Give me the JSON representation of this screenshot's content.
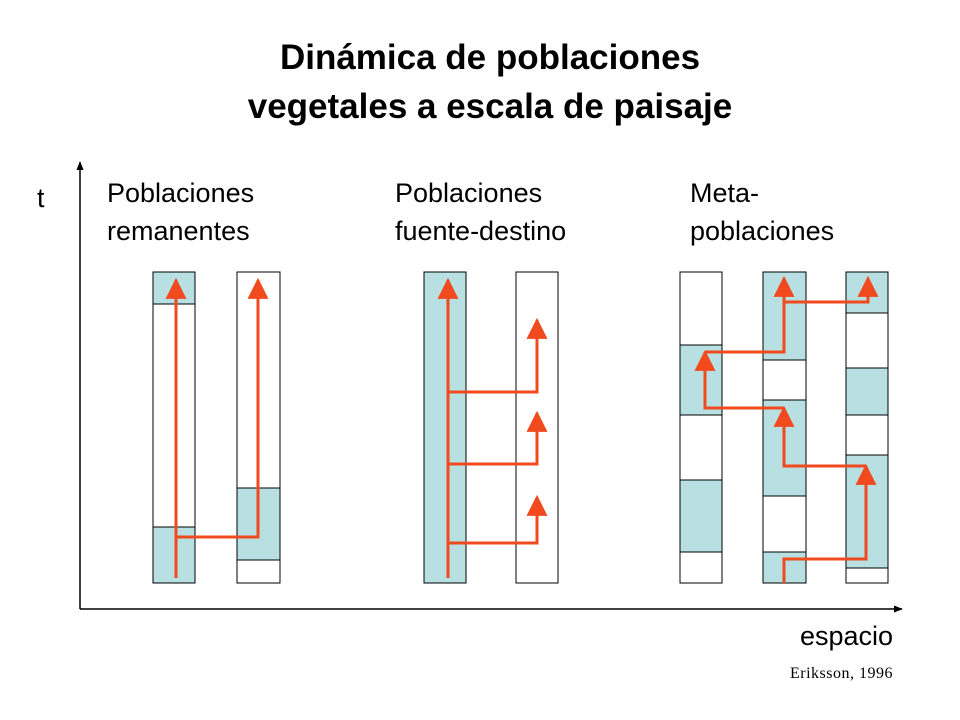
{
  "title": {
    "line1": "Dinámica de poblaciones",
    "line2": "vegetales a escala de paisaje"
  },
  "axes": {
    "y_label": "t",
    "x_label": "espacio"
  },
  "groups": [
    {
      "line1": "Poblaciones",
      "line2": "remanentes"
    },
    {
      "line1": "Poblaciones",
      "line2": "fuente-destino"
    },
    {
      "line1": "Meta-",
      "line2": "poblaciones"
    }
  ],
  "citation": "Eriksson,  1996",
  "colors": {
    "occupied": "#b8e0e3",
    "empty": "#ffffff",
    "arrow": "#f04a1e",
    "outline": "#000000"
  }
}
